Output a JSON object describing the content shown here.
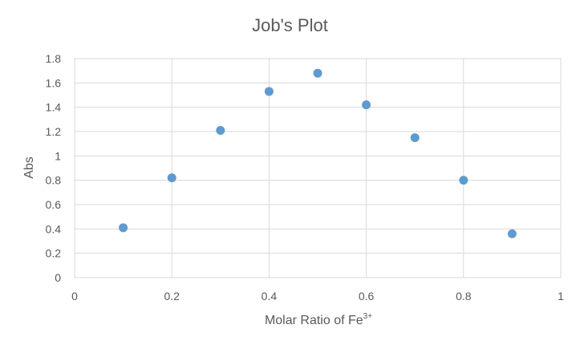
{
  "chart_data": {
    "type": "scatter",
    "title": "Job's Plot",
    "xlabel": "Molar Ratio of Fe",
    "xlabel_superscript": "3+",
    "ylabel": "Abs",
    "xlim": [
      0,
      1
    ],
    "ylim": [
      0,
      1.8
    ],
    "x_ticks": [
      "0",
      "0.2",
      "0.4",
      "0.6",
      "0.8",
      "1"
    ],
    "y_ticks": [
      "0",
      "0.2",
      "0.4",
      "0.6",
      "0.8",
      "1",
      "1.2",
      "1.4",
      "1.6",
      "1.8"
    ],
    "grid": true,
    "marker_color": "#5b9bd5",
    "series": [
      {
        "x": [
          0.1,
          0.2,
          0.3,
          0.4,
          0.5,
          0.6,
          0.7,
          0.8,
          0.9
        ],
        "y": [
          0.41,
          0.82,
          1.21,
          1.53,
          1.68,
          1.42,
          1.15,
          0.8,
          0.36
        ]
      }
    ]
  }
}
